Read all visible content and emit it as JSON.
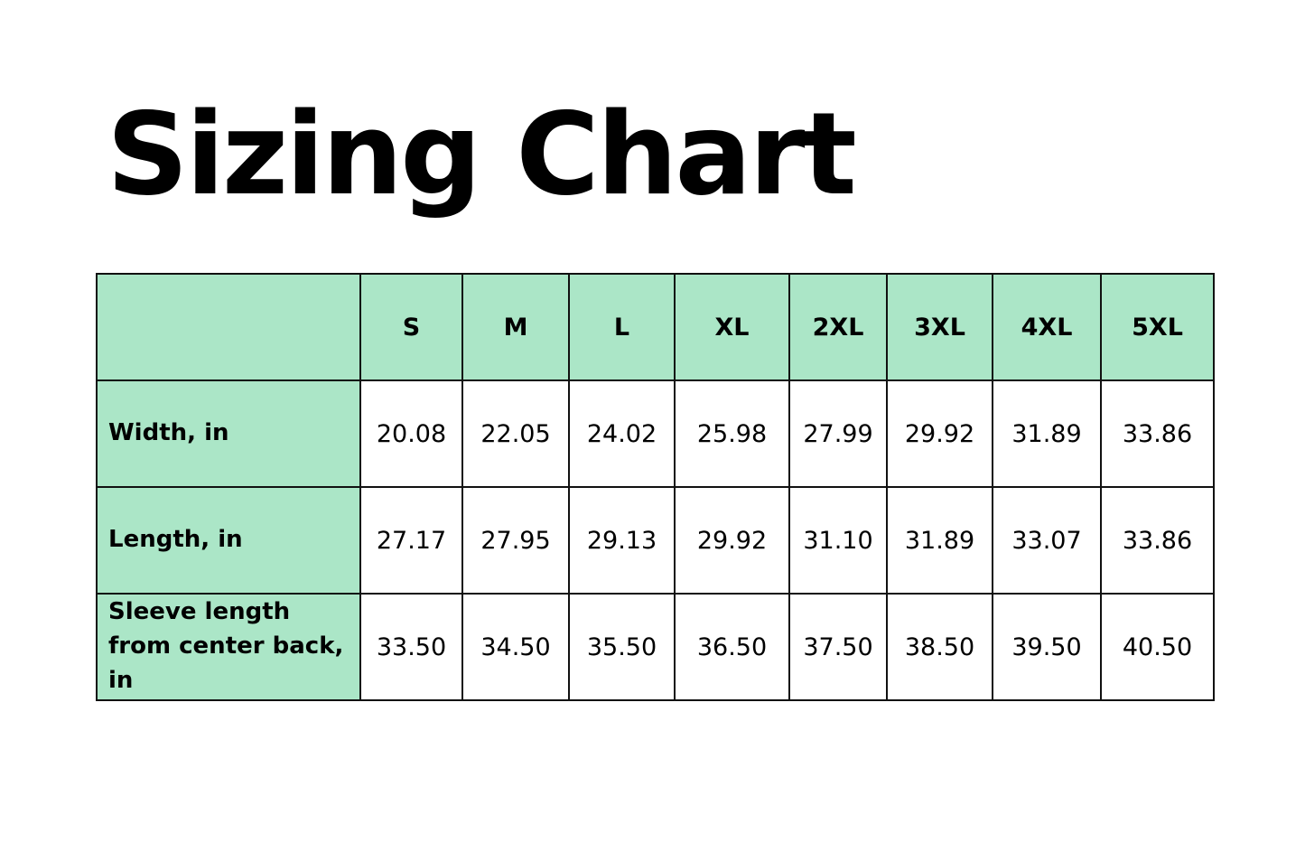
{
  "title": "Sizing Chart",
  "colors": {
    "header_background": "#abe6c7",
    "cell_background": "#ffffff",
    "border": "#111111",
    "text": "#000000"
  },
  "table": {
    "corner": "",
    "columns": [
      "S",
      "M",
      "L",
      "XL",
      "2XL",
      "3XL",
      "4XL",
      "5XL"
    ],
    "rows": [
      {
        "label": "Width, in",
        "values": [
          "20.08",
          "22.05",
          "24.02",
          "25.98",
          "27.99",
          "29.92",
          "31.89",
          "33.86"
        ]
      },
      {
        "label": "Length, in",
        "values": [
          "27.17",
          "27.95",
          "29.13",
          "29.92",
          "31.10",
          "31.89",
          "33.07",
          "33.86"
        ]
      },
      {
        "label": "Sleeve length from center back, in",
        "values": [
          "33.50",
          "34.50",
          "35.50",
          "36.50",
          "37.50",
          "38.50",
          "39.50",
          "40.50"
        ]
      }
    ]
  }
}
